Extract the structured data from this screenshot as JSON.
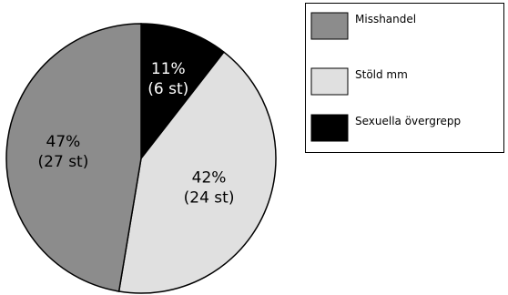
{
  "chart_data": {
    "type": "pie",
    "title": "",
    "slices": [
      {
        "name": "Sexuella övergrepp",
        "value": 6,
        "percent_label": "11%",
        "count_label": "(6 st)",
        "color": "#000000",
        "label_color": "#ffffff"
      },
      {
        "name": "Stöld mm",
        "value": 24,
        "percent_label": "42%",
        "count_label": "(24 st)",
        "color": "#e0e0e0",
        "label_color": "#000000"
      },
      {
        "name": "Misshandel",
        "value": 27,
        "percent_label": "47%",
        "count_label": "(27 st)",
        "color": "#8c8c8c",
        "label_color": "#000000"
      }
    ],
    "legend": {
      "placement": "top-right",
      "entries": [
        {
          "name": "Misshandel",
          "color": "#8c8c8c"
        },
        {
          "name": "Stöld mm",
          "color": "#e0e0e0"
        },
        {
          "name": "Sexuella övergrepp",
          "color": "#000000"
        }
      ]
    }
  }
}
